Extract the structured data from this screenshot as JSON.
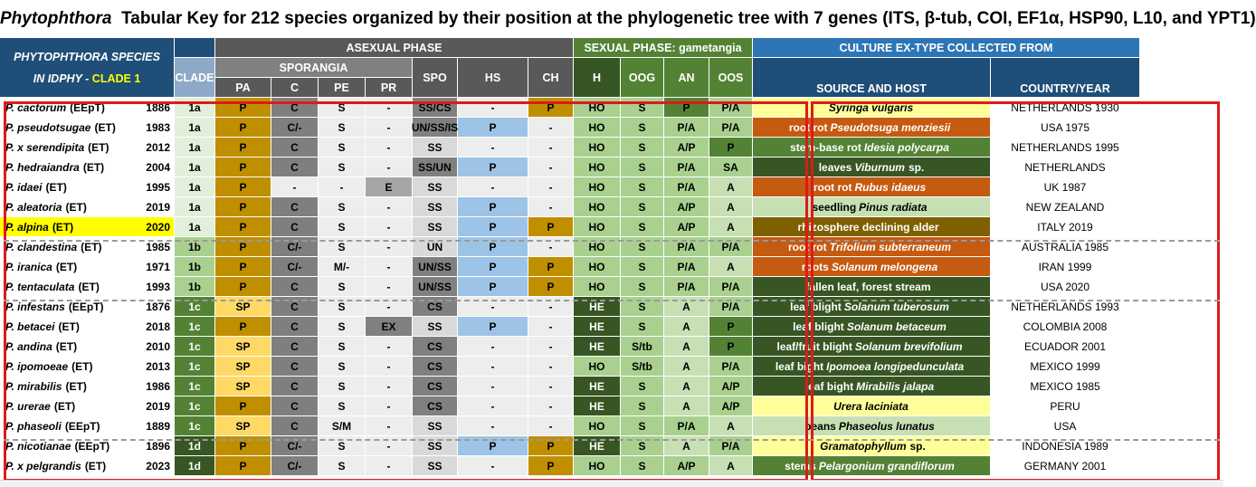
{
  "title": {
    "genus": "Phytophthora",
    "text": "Tabular Key for 212 species organized by their position at the phylogenetic tree with 7 genes (ITS, β-tub, COI, EF1α, HSP90, L10, and YPT1)"
  },
  "headers": {
    "species_line1": "PHYTOPHTHORA  SPECIES",
    "species_line2_prefix": "IN ",
    "species_line2_db": "IDPHY",
    "species_line2_dash": " -  ",
    "species_clade": "CLADE 1",
    "clade": "CLADE",
    "asexual": "ASEXUAL PHASE",
    "sexual": "SEXUAL PHASE: gametangia",
    "culture": "CULTURE EX-TYPE COLLECTED FROM",
    "sporangia": "SPORANGIA",
    "pa": "PA",
    "c": "C",
    "pe": "PE",
    "pr": "PR",
    "spo": "SPO",
    "hs": "HS",
    "ch": "CH",
    "h": "H",
    "oog": "OOG",
    "an": "AN",
    "oos": "OOS",
    "source": "SOURCE AND HOST",
    "country": "COUNTRY/YEAR"
  },
  "rows": [
    {
      "sp": "P. cactorum",
      "code": "(EEpT)",
      "year": "1886",
      "clade": "1a",
      "pa": "P",
      "c": "C",
      "pe": "S",
      "pr": "-",
      "spo": "SS/CS",
      "hs": "-",
      "ch": "P",
      "h": "HO",
      "oog": "S",
      "an": "P",
      "oos": "P/A",
      "host_pre": "",
      "host_it": "Syringa vulgaris",
      "host_post": "",
      "country": "NETHERLANDS 1930"
    },
    {
      "sp": "P. pseudotsugae",
      "code": "(ET)",
      "year": "1983",
      "clade": "1a",
      "pa": "P",
      "c": "C/-",
      "pe": "S",
      "pr": "-",
      "spo": "UN/SS/IS",
      "hs": "P",
      "ch": "-",
      "h": "HO",
      "oog": "S",
      "an": "P/A",
      "oos": "P/A",
      "host_pre": "root rot",
      "host_it": "Pseudotsuga menziesii",
      "host_post": "",
      "country": "USA 1975"
    },
    {
      "sp": "P. x serendipita",
      "code": "(ET)",
      "year": "2012",
      "clade": "1a",
      "pa": "P",
      "c": "C",
      "pe": "S",
      "pr": "-",
      "spo": "SS",
      "hs": "-",
      "ch": "-",
      "h": "HO",
      "oog": "S",
      "an": "A/P",
      "oos": "P",
      "host_pre": "stem-base rot",
      "host_it": "Idesia polycarpa",
      "host_post": "",
      "country": "NETHERLANDS 1995"
    },
    {
      "sp": "P. hedraiandra",
      "code": "(ET)",
      "year": "2004",
      "clade": "1a",
      "pa": "P",
      "c": "C",
      "pe": "S",
      "pr": "-",
      "spo": "SS/UN",
      "hs": "P",
      "ch": "-",
      "h": "HO",
      "oog": "S",
      "an": "P/A",
      "oos": "SA",
      "host_pre": "leaves",
      "host_it": "Viburnum",
      "host_post": "sp.",
      "country": "NETHERLANDS"
    },
    {
      "sp": "P. idaei",
      "code": "(ET)",
      "year": "1995",
      "clade": "1a",
      "pa": "P",
      "c": "-",
      "pe": "-",
      "pr": "E",
      "spo": "SS",
      "hs": "-",
      "ch": "-",
      "h": "HO",
      "oog": "S",
      "an": "P/A",
      "oos": "A",
      "host_pre": "root rot",
      "host_it": "Rubus idaeus",
      "host_post": "",
      "country": "UK 1987"
    },
    {
      "sp": "P. aleatoria",
      "code": "(ET)",
      "year": "2019",
      "clade": "1a",
      "pa": "P",
      "c": "C",
      "pe": "S",
      "pr": "-",
      "spo": "SS",
      "hs": "P",
      "ch": "-",
      "h": "HO",
      "oog": "S",
      "an": "A/P",
      "oos": "A",
      "host_pre": "seedling",
      "host_it": "Pinus radiata",
      "host_post": "",
      "country": "NEW ZEALAND"
    },
    {
      "sp": "P. alpina",
      "code": "(ET)",
      "year": "2020",
      "clade": "1a",
      "pa": "P",
      "c": "C",
      "pe": "S",
      "pr": "-",
      "spo": "SS",
      "hs": "P",
      "ch": "P",
      "h": "HO",
      "oog": "S",
      "an": "A/P",
      "oos": "A",
      "host_pre": "rhizosphere declining alder",
      "host_it": "",
      "host_post": "",
      "country": "ITALY 2019"
    },
    {
      "sp": "P. clandestina",
      "code": "(ET)",
      "year": "1985",
      "clade": "1b",
      "pa": "P",
      "c": "C/-",
      "pe": "S",
      "pr": "-",
      "spo": "UN",
      "hs": "P",
      "ch": "-",
      "h": "HO",
      "oog": "S",
      "an": "P/A",
      "oos": "P/A",
      "host_pre": "root rot",
      "host_it": "Trifolium subterraneum",
      "host_post": "",
      "country": "AUSTRALIA 1985"
    },
    {
      "sp": "P. iranica",
      "code": "(ET)",
      "year": "1971",
      "clade": "1b",
      "pa": "P",
      "c": "C/-",
      "pe": "M/-",
      "pr": "-",
      "spo": "UN/SS",
      "hs": "P",
      "ch": "P",
      "h": "HO",
      "oog": "S",
      "an": "P/A",
      "oos": "A",
      "host_pre": "roots",
      "host_it": "Solanum melongena",
      "host_post": "",
      "country": "IRAN 1999"
    },
    {
      "sp": "P. tentaculata",
      "code": "(ET)",
      "year": "1993",
      "clade": "1b",
      "pa": "P",
      "c": "C",
      "pe": "S",
      "pr": "-",
      "spo": "UN/SS",
      "hs": "P",
      "ch": "P",
      "h": "HO",
      "oog": "S",
      "an": "P/A",
      "oos": "P/A",
      "host_pre": "fallen leaf, forest stream",
      "host_it": "",
      "host_post": "",
      "country": "USA 2020"
    },
    {
      "sp": "P. infestans",
      "code": "(EEpT)",
      "year": "1876",
      "clade": "1c",
      "pa": "SP",
      "c": "C",
      "pe": "S",
      "pr": "-",
      "spo": "CS",
      "hs": "-",
      "ch": "-",
      "h": "HE",
      "oog": "S",
      "an": "A",
      "oos": "P/A",
      "host_pre": "leaf blight",
      "host_it": "Solanum tuberosum",
      "host_post": "",
      "country": "NETHERLANDS 1993"
    },
    {
      "sp": "P. betacei",
      "code": "(ET)",
      "year": "2018",
      "clade": "1c",
      "pa": "P",
      "c": "C",
      "pe": "S",
      "pr": "EX",
      "spo": "SS",
      "hs": "P",
      "ch": "-",
      "h": "HE",
      "oog": "S",
      "an": "A",
      "oos": "P",
      "host_pre": "leaf blight",
      "host_it": "Solanum betaceum",
      "host_post": "",
      "country": "COLOMBIA 2008"
    },
    {
      "sp": "P. andina",
      "code": "(ET)",
      "year": "2010",
      "clade": "1c",
      "pa": "SP",
      "c": "C",
      "pe": "S",
      "pr": "-",
      "spo": "CS",
      "hs": "-",
      "ch": "-",
      "h": "HE",
      "oog": "S/tb",
      "an": "A",
      "oos": "P",
      "host_pre": "leaf/fruit blight ",
      "host_it": "Solanum brevifolium",
      "host_post": "",
      "country": "ECUADOR 2001"
    },
    {
      "sp": "P. ipomoeae",
      "code": "(ET)",
      "year": "2013",
      "clade": "1c",
      "pa": "SP",
      "c": "C",
      "pe": "S",
      "pr": "-",
      "spo": "CS",
      "hs": "-",
      "ch": "-",
      "h": "HO",
      "oog": "S/tb",
      "an": "A",
      "oos": "P/A",
      "host_pre": "leaf bight",
      "host_it": "Ipomoea longipedunculata",
      "host_post": "",
      "country": "MEXICO 1999"
    },
    {
      "sp": "P. mirabilis",
      "code": "(ET)",
      "year": "1986",
      "clade": "1c",
      "pa": "SP",
      "c": "C",
      "pe": "S",
      "pr": "-",
      "spo": "CS",
      "hs": "-",
      "ch": "-",
      "h": "HE",
      "oog": "S",
      "an": "A",
      "oos": "A/P",
      "host_pre": "leaf bight",
      "host_it": "Mirabilis jalapa",
      "host_post": "",
      "country": "MEXICO 1985"
    },
    {
      "sp": "P. urerae",
      "code": "(ET)",
      "year": "2019",
      "clade": "1c",
      "pa": "P",
      "c": "C",
      "pe": "S",
      "pr": "-",
      "spo": "CS",
      "hs": "-",
      "ch": "-",
      "h": "HE",
      "oog": "S",
      "an": "A",
      "oos": "A/P",
      "host_pre": "",
      "host_it": "Urera laciniata",
      "host_post": "",
      "country": "PERU"
    },
    {
      "sp": "P. phaseoli",
      "code": "(EEpT)",
      "year": "1889",
      "clade": "1c",
      "pa": "SP",
      "c": "C",
      "pe": "S/M",
      "pr": "-",
      "spo": "SS",
      "hs": "-",
      "ch": "-",
      "h": "HO",
      "oog": "S",
      "an": "P/A",
      "oos": "A",
      "host_pre": "beans",
      "host_it": "Phaseolus lunatus",
      "host_post": "",
      "country": "USA"
    },
    {
      "sp": "P. nicotianae",
      "code": "(EEpT)",
      "year": "1896",
      "clade": "1d",
      "pa": "P",
      "c": "C/-",
      "pe": "S",
      "pr": "-",
      "spo": "SS",
      "hs": "P",
      "ch": "P",
      "h": "HE",
      "oog": "S",
      "an": "A",
      "oos": "P/A",
      "host_pre": "",
      "host_it": "Gramatophyllum",
      "host_post": "sp.",
      "country": "INDONESIA 1989"
    },
    {
      "sp": "P. x pelgrandis",
      "code": "(ET)",
      "year": "2023",
      "clade": "1d",
      "pa": "P",
      "c": "C/-",
      "pe": "S",
      "pr": "-",
      "spo": "SS",
      "hs": "-",
      "ch": "P",
      "h": "HO",
      "oog": "S",
      "an": "A/P",
      "oos": "A",
      "host_pre": "stems",
      "host_it": "Pelargonium grandiflorum",
      "host_post": "",
      "country": "GERMANY 2001"
    }
  ],
  "colors": {
    "header_blue": "#1f4e78",
    "clade_header": "#8ea9c8",
    "asexual_header": "#595959",
    "sporangia_header": "#808080",
    "sexual_header": "#548235",
    "culture_header": "#2e75b6",
    "gold": "#bf8f00",
    "light_gold": "#ffd966",
    "light_blue": "#9dc3e6",
    "light_green": "#a9d08e",
    "pale_green": "#c6e0b4",
    "dark_green": "#375623",
    "mid_green": "#548235",
    "orange": "#c55a11",
    "olive_brown": "#7f6000",
    "pale_yellow": "#ffff99",
    "yellow": "#ffff00",
    "outline_red": "#dd1a1a"
  }
}
